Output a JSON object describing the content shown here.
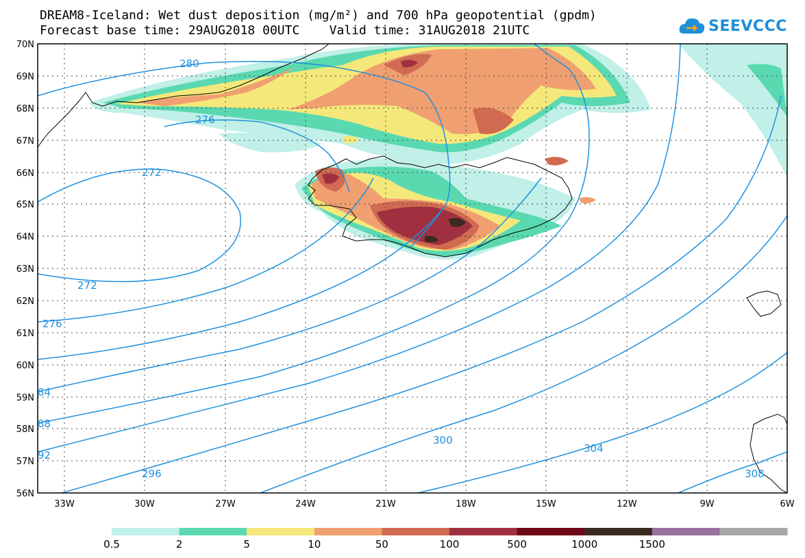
{
  "title": {
    "line1": "DREAM8-Iceland: Wet dust deposition (mg/m²) and 700 hPa geopotential (gpdm)",
    "line2": "Forecast base time: 29AUG2018 00UTC    Valid time: 31AUG2018 21UTC"
  },
  "logo": {
    "text": "SEEVCCC",
    "icon": "cloud-logo-icon",
    "color": "#1e8fd8"
  },
  "map": {
    "lon_range": [
      -34,
      -6
    ],
    "lat_range": [
      56,
      70
    ],
    "lat_labels": [
      "70N",
      "69N",
      "68N",
      "67N",
      "66N",
      "65N",
      "64N",
      "63N",
      "62N",
      "61N",
      "60N",
      "59N",
      "58N",
      "57N",
      "56N"
    ],
    "lon_labels": [
      "33W",
      "30W",
      "27W",
      "24W",
      "21W",
      "18W",
      "15W",
      "12W",
      "9W",
      "6W"
    ],
    "contour_color": "#1e90e0",
    "contour_labels": [
      "280",
      "276",
      "272",
      "272",
      "276",
      "84",
      "88",
      "92",
      "296",
      "300",
      "304",
      "308"
    ]
  },
  "legend": {
    "labels": [
      "0.5",
      "2",
      "5",
      "10",
      "50",
      "100",
      "500",
      "1000",
      "1500"
    ],
    "colors": [
      "#c0f0e8",
      "#5ad9b0",
      "#f5e87a",
      "#f0a070",
      "#d06a50",
      "#a03040",
      "#700818",
      "#3a2a20",
      "#9a70a0",
      "#a8a8a8"
    ]
  }
}
